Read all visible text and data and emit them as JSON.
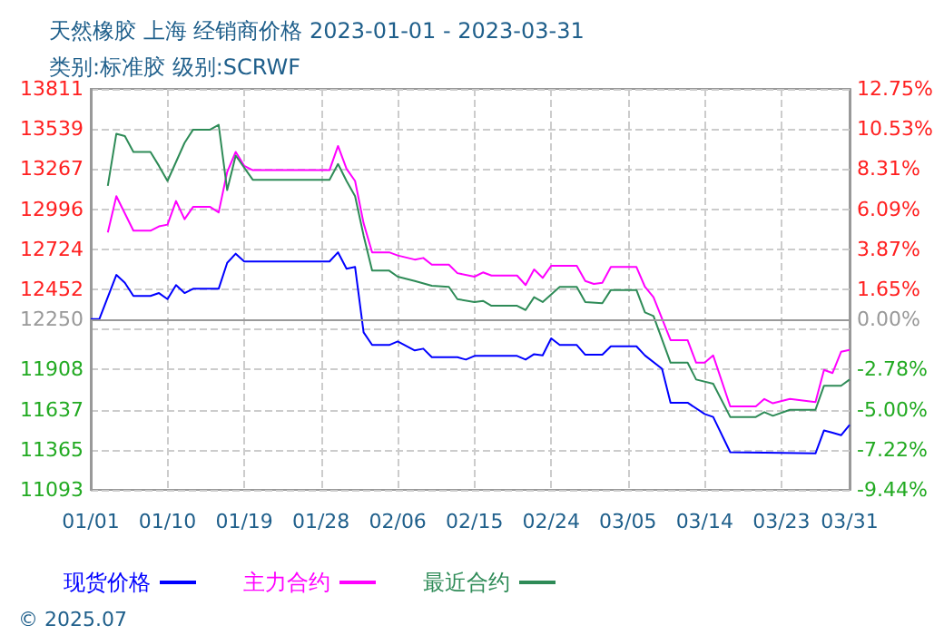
{
  "chart_data": {
    "type": "line",
    "title": "天然橡胶 上海 经销商价格 2023-01-01 - 2023-03-31",
    "subtitle": "类别:标准胶 级别:SCRWF",
    "annotations": [
      "© 2025.07"
    ],
    "xlim": [
      "2023-01-01",
      "2023-03-31"
    ],
    "xticks": [
      {
        "value": "2023-01-01",
        "label": "01/01"
      },
      {
        "value": "2023-01-10",
        "label": "01/10"
      },
      {
        "value": "2023-01-19",
        "label": "01/19"
      },
      {
        "value": "2023-01-28",
        "label": "01/28"
      },
      {
        "value": "2023-02-06",
        "label": "02/06"
      },
      {
        "value": "2023-02-15",
        "label": "02/15"
      },
      {
        "value": "2023-02-24",
        "label": "02/24"
      },
      {
        "value": "2023-03-05",
        "label": "03/05"
      },
      {
        "value": "2023-03-14",
        "label": "03/14"
      },
      {
        "value": "2023-03-23",
        "label": "03/23"
      },
      {
        "value": "2023-03-31",
        "label": "03/31"
      }
    ],
    "ylim": [
      11093,
      13811
    ],
    "yticks": [
      11093,
      11365,
      11637,
      11908,
      {
        "value": 12180,
        "label": null
      },
      12250,
      12452,
      12724,
      12996,
      13267,
      13539,
      13811
    ],
    "y2lim": [
      -9.44,
      12.75
    ],
    "y2ticks": [
      {
        "value": -9.44,
        "label": "-9.44%"
      },
      {
        "value": -7.22,
        "label": "-7.22%"
      },
      {
        "value": -5.0,
        "label": "-5.00%"
      },
      {
        "value": -2.78,
        "label": "-2.78%"
      },
      {
        "value": 0,
        "label": "0.00%"
      },
      {
        "value": 1.65,
        "label": "1.65%"
      },
      {
        "value": 3.87,
        "label": "3.87%"
      },
      {
        "value": 6.09,
        "label": "6.09%"
      },
      {
        "value": 8.31,
        "label": "8.31%"
      },
      {
        "value": 10.53,
        "label": "10.53%"
      },
      {
        "value": 12.75,
        "label": "12.75%"
      }
    ],
    "ref_lines": [
      {
        "axis": "y",
        "value": 12250,
        "color": "#999999",
        "line_style": "solid"
      }
    ],
    "grid": true,
    "legend": "bottom",
    "marker": "none",
    "line_style": "solid",
    "series": [
      {
        "name": "现货价格",
        "color": "#0000ff",
        "x": [
          "2023-01-01",
          "2023-01-02",
          "2023-01-04",
          "2023-01-05",
          "2023-01-06",
          "2023-01-08",
          "2023-01-09",
          "2023-01-10",
          "2023-01-11",
          "2023-01-12",
          "2023-01-13",
          "2023-01-16",
          "2023-01-17",
          "2023-01-18",
          "2023-01-19",
          "2023-01-29",
          "2023-01-30",
          "2023-01-31",
          "2023-02-01",
          "2023-02-02",
          "2023-02-03",
          "2023-02-05",
          "2023-02-06",
          "2023-02-08",
          "2023-02-09",
          "2023-02-10",
          "2023-02-13",
          "2023-02-14",
          "2023-02-15",
          "2023-02-20",
          "2023-02-21",
          "2023-02-22",
          "2023-02-23",
          "2023-02-24",
          "2023-02-25",
          "2023-02-27",
          "2023-02-28",
          "2023-03-02",
          "2023-03-03",
          "2023-03-06",
          "2023-03-07",
          "2023-03-09",
          "2023-03-10",
          "2023-03-12",
          "2023-03-14",
          "2023-03-15",
          "2023-03-17",
          "2023-03-27",
          "2023-03-28",
          "2023-03-29",
          "2023-03-30",
          "2023-03-31"
        ],
        "values": [
          12250,
          12250,
          12550,
          12497,
          12407,
          12407,
          12427,
          12386,
          12481,
          12427,
          12456,
          12456,
          12632,
          12694,
          12641,
          12641,
          12703,
          12592,
          12604,
          12161,
          12075,
          12075,
          12099,
          12038,
          12050,
          11992,
          11992,
          11976,
          12001,
          12001,
          11976,
          12013,
          12005,
          12120,
          12075,
          12075,
          12009,
          12009,
          12066,
          12066,
          12004,
          11914,
          11684,
          11684,
          11607,
          11587,
          11348,
          11340,
          11496,
          11480,
          11463,
          11533
        ]
      },
      {
        "name": "主力合约",
        "color": "#ff00ff",
        "x": [
          "2023-01-03",
          "2023-01-04",
          "2023-01-06",
          "2023-01-08",
          "2023-01-09",
          "2023-01-10",
          "2023-01-11",
          "2023-01-12",
          "2023-01-13",
          "2023-01-15",
          "2023-01-16",
          "2023-01-17",
          "2023-01-18",
          "2023-01-19",
          "2023-01-20",
          "2023-01-29",
          "2023-01-30",
          "2023-01-31",
          "2023-02-01",
          "2023-02-02",
          "2023-02-03",
          "2023-02-05",
          "2023-02-06",
          "2023-02-08",
          "2023-02-09",
          "2023-02-10",
          "2023-02-12",
          "2023-02-13",
          "2023-02-15",
          "2023-02-16",
          "2023-02-17",
          "2023-02-20",
          "2023-02-21",
          "2023-02-22",
          "2023-02-23",
          "2023-02-24",
          "2023-02-27",
          "2023-02-28",
          "2023-03-01",
          "2023-03-02",
          "2023-03-03",
          "2023-03-06",
          "2023-03-07",
          "2023-03-08",
          "2023-03-10",
          "2023-03-12",
          "2023-03-13",
          "2023-03-14",
          "2023-03-15",
          "2023-03-17",
          "2023-03-20",
          "2023-03-21",
          "2023-03-22",
          "2023-03-24",
          "2023-03-27",
          "2023-03-28",
          "2023-03-29",
          "2023-03-30",
          "2023-03-31"
        ],
        "values": [
          12838,
          13084,
          12850,
          12850,
          12879,
          12891,
          13051,
          12928,
          13011,
          13011,
          12974,
          13248,
          13384,
          13289,
          13260,
          13260,
          13424,
          13269,
          13187,
          12900,
          12703,
          12703,
          12682,
          12654,
          12665,
          12620,
          12620,
          12562,
          12538,
          12567,
          12546,
          12546,
          12481,
          12587,
          12530,
          12612,
          12612,
          12509,
          12489,
          12497,
          12604,
          12604,
          12469,
          12399,
          12108,
          12108,
          11955,
          11955,
          12004,
          11659,
          11659,
          11709,
          11680,
          11709,
          11688,
          11906,
          11885,
          12029,
          12042
        ]
      },
      {
        "name": "最近合约",
        "color": "#2e8b57",
        "x": [
          "2023-01-03",
          "2023-01-04",
          "2023-01-05",
          "2023-01-06",
          "2023-01-08",
          "2023-01-09",
          "2023-01-10",
          "2023-01-12",
          "2023-01-13",
          "2023-01-15",
          "2023-01-16",
          "2023-01-17",
          "2023-01-18",
          "2023-01-20",
          "2023-01-29",
          "2023-01-30",
          "2023-01-31",
          "2023-02-01",
          "2023-02-02",
          "2023-02-03",
          "2023-02-05",
          "2023-02-06",
          "2023-02-08",
          "2023-02-10",
          "2023-02-12",
          "2023-02-13",
          "2023-02-15",
          "2023-02-16",
          "2023-02-17",
          "2023-02-20",
          "2023-02-21",
          "2023-02-22",
          "2023-02-23",
          "2023-02-25",
          "2023-02-27",
          "2023-02-28",
          "2023-03-02",
          "2023-03-03",
          "2023-03-06",
          "2023-03-07",
          "2023-03-08",
          "2023-03-10",
          "2023-03-12",
          "2023-03-13",
          "2023-03-15",
          "2023-03-17",
          "2023-03-20",
          "2023-03-21",
          "2023-03-22",
          "2023-03-24",
          "2023-03-27",
          "2023-03-28",
          "2023-03-30",
          "2023-03-31"
        ],
        "values": [
          13154,
          13507,
          13491,
          13384,
          13384,
          13289,
          13187,
          13445,
          13535,
          13535,
          13568,
          13125,
          13359,
          13195,
          13195,
          13302,
          13187,
          13084,
          12817,
          12579,
          12579,
          12538,
          12509,
          12477,
          12469,
          12386,
          12366,
          12374,
          12341,
          12341,
          12312,
          12399,
          12366,
          12469,
          12469,
          12366,
          12358,
          12448,
          12448,
          12296,
          12271,
          11955,
          11955,
          11841,
          11812,
          11587,
          11587,
          11620,
          11595,
          11636,
          11636,
          11799,
          11799,
          11841
        ]
      }
    ]
  }
}
